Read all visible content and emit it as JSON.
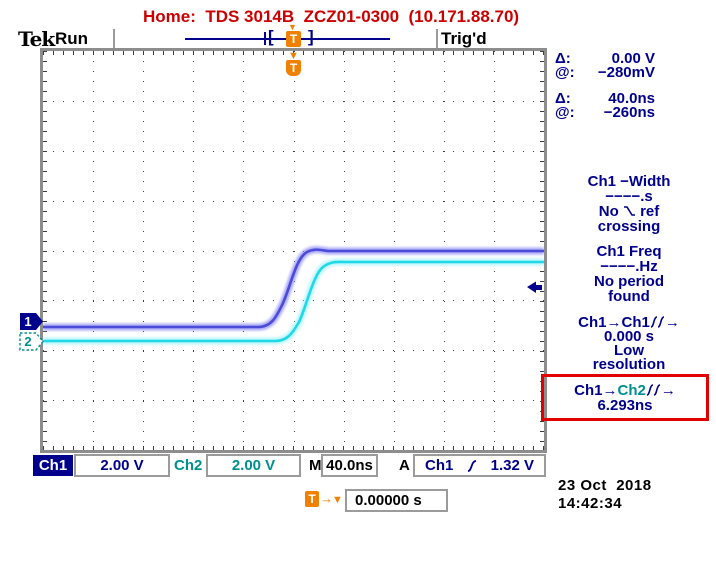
{
  "header": {
    "title": "Home:  TDS 3014B  ZCZ01-0300  (10.171.88.70)",
    "color": "#cc0000"
  },
  "status_bar": {
    "logo": "Tek",
    "acq_state": "Run",
    "trig_status": "Trig'd",
    "bracket_left": "[",
    "bracket_right": "]"
  },
  "trigger": {
    "t_badge": "T",
    "arrow": "→",
    "marker_down": "▼",
    "position_value": "0.00000 s"
  },
  "channels": {
    "ch1": {
      "marker": "1",
      "scale": "2.00 V",
      "color": "#4b4bd8"
    },
    "ch2": {
      "marker": "2",
      "scale": "2.00 V",
      "color": "#1fd8e8"
    }
  },
  "cursors": [
    {
      "label": "Δ:",
      "value": "0.00 V"
    },
    {
      "label": "@:",
      "value": "−280mV"
    },
    {
      "label": "Δ:",
      "value": "40.0ns"
    },
    {
      "label": "@:",
      "value": "−260ns"
    }
  ],
  "measurements": {
    "m1": {
      "l1": "Ch1 −Width",
      "l2": "−−−−.s",
      "l3a": "No",
      "l3b": "ref",
      "l4": "crossing"
    },
    "m2": {
      "l1": "Ch1 Freq",
      "l2": "−−−−.Hz",
      "l3": "No period",
      "l4": "found"
    },
    "m3": {
      "src": "Ch1→Ch1",
      "arrow": "→",
      "value": "0.000 s",
      "note1": "Low",
      "note2": "resolution"
    },
    "m4": {
      "src_a": "Ch1→",
      "src_b": "Ch2",
      "arrow": "→",
      "value": "6.293ns"
    }
  },
  "bottom_bar": {
    "ch1_label": "Ch1",
    "ch1_scale": "2.00 V",
    "ch2_label": "Ch2",
    "ch2_scale": "2.00 V",
    "timebase_label": "M",
    "timebase": "40.0ns",
    "trig_label": "A",
    "trig_source": "Ch1",
    "trig_level": "1.32 V"
  },
  "datetime": {
    "date": "23 Oct  2018",
    "time": "14:42:34"
  },
  "chart_data": {
    "type": "line",
    "title": "Step response captured on TDS 3014B, Ch1 and Ch2",
    "x_axis": {
      "scale_per_div": "40.0ns",
      "divisions": 10,
      "trigger_at_div": 5,
      "delay": "0.00000 s"
    },
    "y_axis": {
      "scale_per_div": "2.00 V",
      "divisions": 8
    },
    "series": [
      {
        "name": "Ch1",
        "low_V": -0.2,
        "high_V": 2.8,
        "edge_time_ns": -3,
        "rise_time_ns": 30
      },
      {
        "name": "Ch2",
        "low_V": 0.0,
        "high_V": 3.2,
        "edge_time_ns": 3.3,
        "rise_time_ns": 35
      }
    ],
    "measured_delay_ch1_to_ch2_ns": 6.293,
    "trigger_level_V": 1.32
  }
}
